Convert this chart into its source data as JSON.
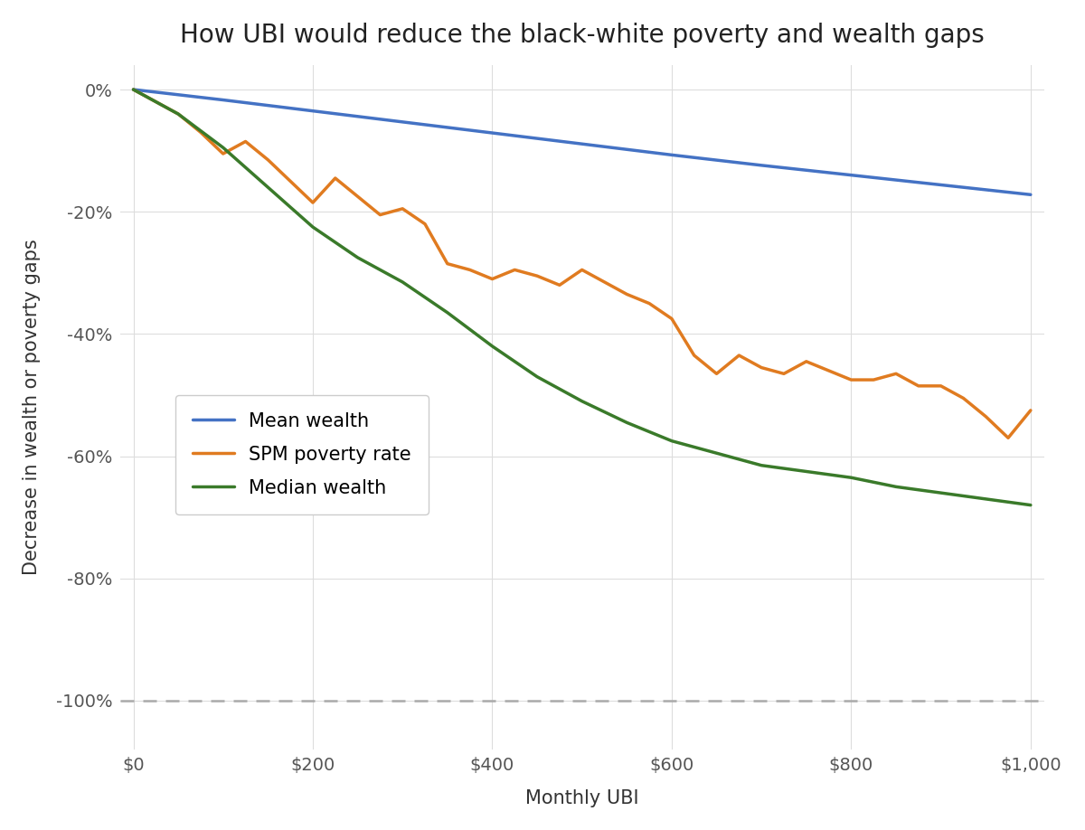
{
  "title": "How UBI would reduce the black-white poverty and wealth gaps",
  "xlabel": "Monthly UBI",
  "ylabel": "Decrease in wealth or poverty gaps",
  "background_color": "#ffffff",
  "plot_background_color": "#ffffff",
  "grid_color": "#dddddd",
  "title_fontsize": 20,
  "axis_fontsize": 15,
  "tick_fontsize": 14,
  "legend_fontsize": 15,
  "line_width": 2.5,
  "mean_wealth_color": "#4472c4",
  "spm_poverty_color": "#e07b20",
  "median_wealth_color": "#3a7a2a",
  "dashed_line_color": "#aaaaaa",
  "x_ticks": [
    0,
    200,
    400,
    600,
    800,
    1000
  ],
  "x_tick_labels": [
    "$0",
    "$200",
    "$400",
    "$600",
    "$800",
    "$1,000"
  ],
  "y_ticks": [
    0,
    -20,
    -40,
    -60,
    -80,
    -100
  ],
  "y_tick_labels": [
    "0%",
    "-20%",
    "-40%",
    "-60%",
    "-80%",
    "-100%"
  ],
  "ylim": [
    -108,
    4
  ],
  "xlim": [
    -15,
    1015
  ],
  "mean_wealth_x": [
    0,
    100,
    200,
    300,
    400,
    500,
    600,
    700,
    800,
    900,
    1000
  ],
  "mean_wealth_y": [
    0,
    -1.7,
    -3.5,
    -5.3,
    -7.1,
    -8.9,
    -10.7,
    -12.4,
    -14.0,
    -15.6,
    -17.2
  ],
  "spm_poverty_x": [
    0,
    25,
    50,
    75,
    100,
    125,
    150,
    175,
    200,
    225,
    250,
    275,
    300,
    325,
    350,
    375,
    400,
    425,
    450,
    475,
    500,
    525,
    550,
    575,
    600,
    625,
    650,
    675,
    700,
    725,
    750,
    775,
    800,
    825,
    850,
    875,
    900,
    925,
    950,
    975,
    1000
  ],
  "spm_poverty_y": [
    0,
    -2.0,
    -4.0,
    -7.0,
    -10.5,
    -8.5,
    -11.5,
    -15.0,
    -18.5,
    -14.5,
    -17.5,
    -20.5,
    -19.5,
    -22.0,
    -28.5,
    -29.5,
    -31.0,
    -29.5,
    -30.5,
    -32.0,
    -29.5,
    -31.5,
    -33.5,
    -35.0,
    -37.5,
    -43.5,
    -46.5,
    -43.5,
    -45.5,
    -46.5,
    -44.5,
    -46.0,
    -47.5,
    -47.5,
    -46.5,
    -48.5,
    -48.5,
    -50.5,
    -53.5,
    -57.0,
    -52.5
  ],
  "median_wealth_x": [
    0,
    50,
    100,
    150,
    200,
    250,
    300,
    350,
    400,
    450,
    500,
    550,
    600,
    650,
    700,
    750,
    800,
    850,
    900,
    950,
    1000
  ],
  "median_wealth_y": [
    0,
    -4.0,
    -9.5,
    -16.0,
    -22.5,
    -27.5,
    -31.5,
    -36.5,
    -42.0,
    -47.0,
    -51.0,
    -54.5,
    -57.5,
    -59.5,
    -61.5,
    -62.5,
    -63.5,
    -65.0,
    -66.0,
    -67.0,
    -68.0
  ]
}
